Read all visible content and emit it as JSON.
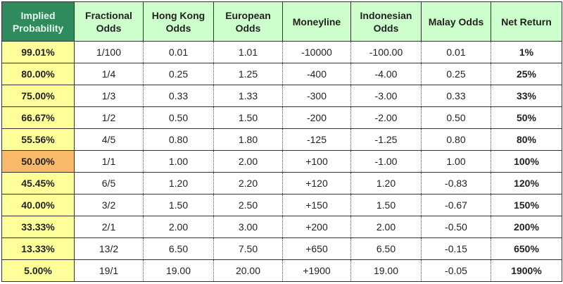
{
  "colors": {
    "header_bg": "#ccffcc",
    "first_header_bg": "#2f8a5c",
    "prob_bg": "#ffff99",
    "highlight_bg": "#f8b968"
  },
  "headers": [
    "Implied Probability",
    "Fractional Odds",
    "Hong Kong Odds",
    "European Odds",
    "Moneyline",
    "Indonesian Odds",
    "Malay Odds",
    "Net Return"
  ],
  "rows": [
    [
      "99.01%",
      "1/100",
      "0.01",
      "1.01",
      "-10000",
      "-100.00",
      "0.01",
      "1%"
    ],
    [
      "80.00%",
      "1/4",
      "0.25",
      "1.25",
      "-400",
      "-4.00",
      "0.25",
      "25%"
    ],
    [
      "75.00%",
      "1/3",
      "0.33",
      "1.33",
      "-300",
      "-3.00",
      "0.33",
      "33%"
    ],
    [
      "66.67%",
      "1/2",
      "0.50",
      "1.50",
      "-200",
      "-2.00",
      "0.50",
      "50%"
    ],
    [
      "55.56%",
      "4/5",
      "0.80",
      "1.80",
      "-125",
      "-1.25",
      "0.80",
      "80%"
    ],
    [
      "50.00%",
      "1/1",
      "1.00",
      "2.00",
      "+100",
      "-1.00",
      "1.00",
      "100%"
    ],
    [
      "45.45%",
      "6/5",
      "1.20",
      "2.20",
      "+120",
      "1.20",
      "-0.83",
      "120%"
    ],
    [
      "40.00%",
      "3/2",
      "1.50",
      "2.50",
      "+150",
      "1.50",
      "-0.67",
      "150%"
    ],
    [
      "33.33%",
      "2/1",
      "2.00",
      "3.00",
      "+200",
      "2.00",
      "-0.50",
      "200%"
    ],
    [
      "13.33%",
      "13/2",
      "6.50",
      "7.50",
      "+650",
      "6.50",
      "-0.15",
      "650%"
    ],
    [
      "5.00%",
      "19/1",
      "19.00",
      "20.00",
      "+1900",
      "19.00",
      "-0.05",
      "1900%"
    ]
  ],
  "highlight_row": 5
}
